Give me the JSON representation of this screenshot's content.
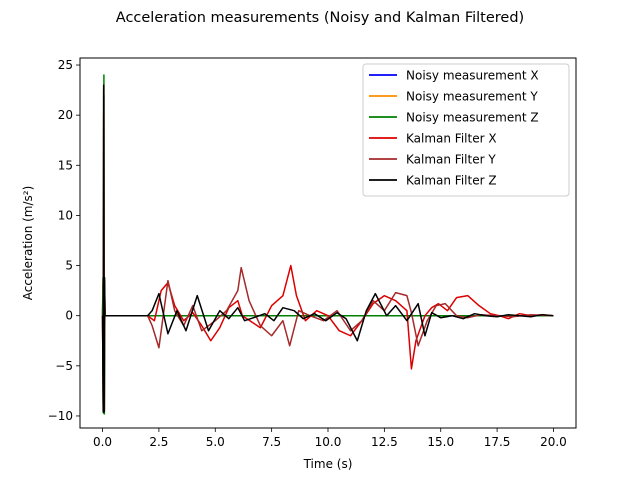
{
  "chart_data": {
    "type": "line",
    "title": "Acceleration measurements (Noisy and Kalman Filtered)",
    "xlabel": "Time (s)",
    "ylabel": "Acceleration (m/s²)",
    "xlim": [
      -1.0,
      21.0
    ],
    "ylim": [
      -11.2,
      25.7
    ],
    "xticks": [
      0.0,
      2.5,
      5.0,
      7.5,
      10.0,
      12.5,
      15.0,
      17.5,
      20.0
    ],
    "xtick_labels": [
      "0.0",
      "2.5",
      "5.0",
      "7.5",
      "10.0",
      "12.5",
      "15.0",
      "17.5",
      "20.0"
    ],
    "yticks": [
      -10,
      -5,
      0,
      5,
      10,
      15,
      20,
      25
    ],
    "ytick_labels": [
      "−10",
      "−5",
      "0",
      "5",
      "10",
      "15",
      "20",
      "25"
    ],
    "grid": false,
    "legend_position": "top-right",
    "series": [
      {
        "name": "Noisy measurement X",
        "color": "#0000ff",
        "x": [
          0.0,
          0.02,
          0.04,
          0.06,
          0.08,
          0.1,
          2.0,
          20.0
        ],
        "y": [
          0.0,
          3.0,
          -9.0,
          22.0,
          -9.5,
          0.0,
          0.0,
          0.0
        ]
      },
      {
        "name": "Noisy measurement Y",
        "color": "#ff8c00",
        "x": [
          0.0,
          0.02,
          0.04,
          0.06,
          0.08,
          0.1,
          2.0,
          20.0
        ],
        "y": [
          0.0,
          3.5,
          -9.3,
          23.0,
          -9.6,
          0.0,
          0.0,
          0.0
        ]
      },
      {
        "name": "Noisy measurement Z",
        "color": "#008000",
        "x": [
          0.0,
          0.02,
          0.04,
          0.06,
          0.08,
          0.1,
          0.15,
          2.0,
          20.0
        ],
        "y": [
          0.0,
          3.8,
          -9.7,
          24.0,
          -9.8,
          0.0,
          0.0,
          0.0,
          0.0
        ]
      },
      {
        "name": "Kalman Filter X",
        "color": "#dd0000",
        "x": [
          0.0,
          0.03,
          0.05,
          0.07,
          0.09,
          0.11,
          0.15,
          0.3,
          2.0,
          2.3,
          2.6,
          2.9,
          3.2,
          3.6,
          4.0,
          4.4,
          4.8,
          5.2,
          5.6,
          6.0,
          6.2,
          6.6,
          7.0,
          7.5,
          8.0,
          8.35,
          8.6,
          9.0,
          9.5,
          10.0,
          10.5,
          11.0,
          11.5,
          12.0,
          12.5,
          13.0,
          13.5,
          13.7,
          13.9,
          14.3,
          14.6,
          14.9,
          15.3,
          15.7,
          16.2,
          16.7,
          17.2,
          17.6,
          18.0,
          18.5,
          19.0,
          19.5,
          20.0
        ],
        "y": [
          0.0,
          -9.0,
          20.0,
          -9.0,
          3.0,
          0.0,
          0.0,
          0.0,
          0.0,
          -0.5,
          2.5,
          3.3,
          1.0,
          -0.5,
          0.3,
          -1.0,
          -2.5,
          -1.2,
          0.8,
          1.5,
          0.0,
          -0.6,
          -1.2,
          1.0,
          2.0,
          5.0,
          2.0,
          -0.5,
          0.5,
          0.0,
          -1.5,
          -2.0,
          -0.5,
          1.2,
          2.0,
          1.5,
          0.5,
          -5.3,
          -2.5,
          0.0,
          0.8,
          1.2,
          0.5,
          1.8,
          2.0,
          1.0,
          0.2,
          0.0,
          -0.3,
          0.2,
          0.0,
          0.1,
          0.0
        ]
      },
      {
        "name": "Kalman Filter Y",
        "color": "#a52a2a",
        "x": [
          0.0,
          0.03,
          0.05,
          0.07,
          0.09,
          0.11,
          0.15,
          0.3,
          2.0,
          2.2,
          2.5,
          2.9,
          3.2,
          3.6,
          4.0,
          4.4,
          5.0,
          5.5,
          6.0,
          6.15,
          6.5,
          7.0,
          7.5,
          8.0,
          8.3,
          8.7,
          9.2,
          9.8,
          10.4,
          11.0,
          11.5,
          12.0,
          12.5,
          13.0,
          13.5,
          13.7,
          14.0,
          14.4,
          14.8,
          15.2,
          15.7,
          16.2,
          16.8,
          17.5,
          18.2,
          19.0,
          20.0
        ],
        "y": [
          0.0,
          -9.4,
          22.5,
          -9.4,
          3.5,
          0.0,
          0.0,
          0.0,
          0.0,
          -1.0,
          -3.2,
          3.5,
          0.5,
          -1.0,
          1.0,
          -1.5,
          -0.5,
          0.5,
          2.5,
          4.8,
          1.5,
          -1.0,
          -2.0,
          -0.5,
          -3.0,
          0.5,
          0.0,
          -0.5,
          0.5,
          -1.5,
          -0.5,
          1.5,
          0.5,
          2.3,
          2.0,
          0.3,
          -3.0,
          -0.5,
          1.0,
          1.2,
          0.0,
          -0.2,
          0.1,
          0.0,
          -0.1,
          0.1,
          0.0
        ]
      },
      {
        "name": "Kalman Filter Z",
        "color": "#000000",
        "x": [
          0.0,
          0.03,
          0.05,
          0.07,
          0.09,
          0.11,
          0.15,
          0.3,
          2.0,
          2.2,
          2.5,
          2.9,
          3.3,
          3.7,
          4.2,
          4.7,
          5.2,
          5.6,
          6.0,
          6.3,
          6.7,
          7.2,
          7.6,
          8.0,
          8.5,
          8.9,
          9.4,
          9.9,
          10.4,
          10.8,
          11.3,
          11.7,
          12.1,
          12.6,
          13.0,
          13.5,
          14.0,
          14.3,
          14.6,
          15.0,
          15.5,
          16.0,
          16.5,
          17.0,
          17.5,
          18.0,
          18.5,
          19.0,
          19.5,
          20.0
        ],
        "y": [
          0.0,
          -9.6,
          23.0,
          -9.6,
          3.8,
          0.0,
          0.0,
          0.0,
          0.0,
          0.5,
          2.2,
          -1.8,
          0.5,
          -1.5,
          2.0,
          -1.5,
          0.5,
          -0.3,
          0.8,
          -0.5,
          -0.2,
          0.2,
          -0.5,
          0.8,
          0.5,
          -0.3,
          0.2,
          -0.5,
          0.3,
          -0.3,
          -2.5,
          0.5,
          2.2,
          0.0,
          1.0,
          -0.5,
          1.2,
          -2.0,
          0.3,
          -0.2,
          0.0,
          -0.3,
          0.2,
          0.0,
          -0.1,
          0.1,
          0.0,
          -0.1,
          0.1,
          0.0
        ]
      }
    ]
  }
}
